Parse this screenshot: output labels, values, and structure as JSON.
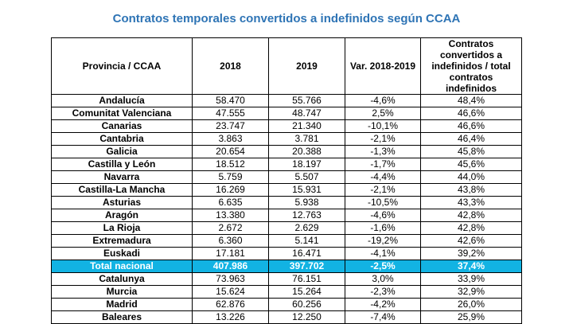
{
  "title": "Contratos temporales convertidos a indefinidos según CCAA",
  "headers": {
    "province": "Provincia / CCAA",
    "y2018": "2018",
    "y2019": "2019",
    "var": "Var. 2018-2019",
    "ratio": "Contratos convertidos a indefinidos / total contratos indefinidos"
  },
  "rows": [
    {
      "name": "Andalucía",
      "y2018": "58.470",
      "y2019": "55.766",
      "var": "-4,6%",
      "ratio": "48,4%"
    },
    {
      "name": "Comunitat Valenciana",
      "y2018": "47.555",
      "y2019": "48.747",
      "var": "2,5%",
      "ratio": "46,6%"
    },
    {
      "name": "Canarias",
      "y2018": "23.747",
      "y2019": "21.340",
      "var": "-10,1%",
      "ratio": "46,6%"
    },
    {
      "name": "Cantabria",
      "y2018": "3.863",
      "y2019": "3.781",
      "var": "-2,1%",
      "ratio": "46,4%"
    },
    {
      "name": "Galicia",
      "y2018": "20.654",
      "y2019": "20.388",
      "var": "-1,3%",
      "ratio": "45,8%"
    },
    {
      "name": "Castilla y León",
      "y2018": "18.512",
      "y2019": "18.197",
      "var": "-1,7%",
      "ratio": "45,6%"
    },
    {
      "name": "Navarra",
      "y2018": "5.759",
      "y2019": "5.507",
      "var": "-4,4%",
      "ratio": "44,0%"
    },
    {
      "name": "Castilla-La Mancha",
      "y2018": "16.269",
      "y2019": "15.931",
      "var": "-2,1%",
      "ratio": "43,8%"
    },
    {
      "name": "Asturias",
      "y2018": "6.635",
      "y2019": "5.938",
      "var": "-10,5%",
      "ratio": "43,3%"
    },
    {
      "name": "Aragón",
      "y2018": "13.380",
      "y2019": "12.763",
      "var": "-4,6%",
      "ratio": "42,8%"
    },
    {
      "name": "La Rioja",
      "y2018": "2.672",
      "y2019": "2.629",
      "var": "-1,6%",
      "ratio": "42,8%"
    },
    {
      "name": "Extremadura",
      "y2018": "6.360",
      "y2019": "5.141",
      "var": "-19,2%",
      "ratio": "42,6%"
    },
    {
      "name": "Euskadi",
      "y2018": "17.181",
      "y2019": "16.471",
      "var": "-4,1%",
      "ratio": "39,2%"
    },
    {
      "name": "Total nacional",
      "y2018": "407.986",
      "y2019": "397.702",
      "var": "-2,5%",
      "ratio": "37,4%",
      "highlight": true
    },
    {
      "name": "Catalunya",
      "y2018": "73.963",
      "y2019": "76.151",
      "var": "3,0%",
      "ratio": "33,9%"
    },
    {
      "name": "Murcia",
      "y2018": "15.624",
      "y2019": "15.264",
      "var": "-2,3%",
      "ratio": "32,9%"
    },
    {
      "name": "Madrid",
      "y2018": "62.876",
      "y2019": "60.256",
      "var": "-4,2%",
      "ratio": "26,0%"
    },
    {
      "name": "Baleares",
      "y2018": "13.226",
      "y2019": "12.250",
      "var": "-7,4%",
      "ratio": "25,9%"
    }
  ],
  "colors": {
    "title": "#2e74b5",
    "highlight_bg": "#12b3e3",
    "highlight_text": "#ffffff"
  }
}
